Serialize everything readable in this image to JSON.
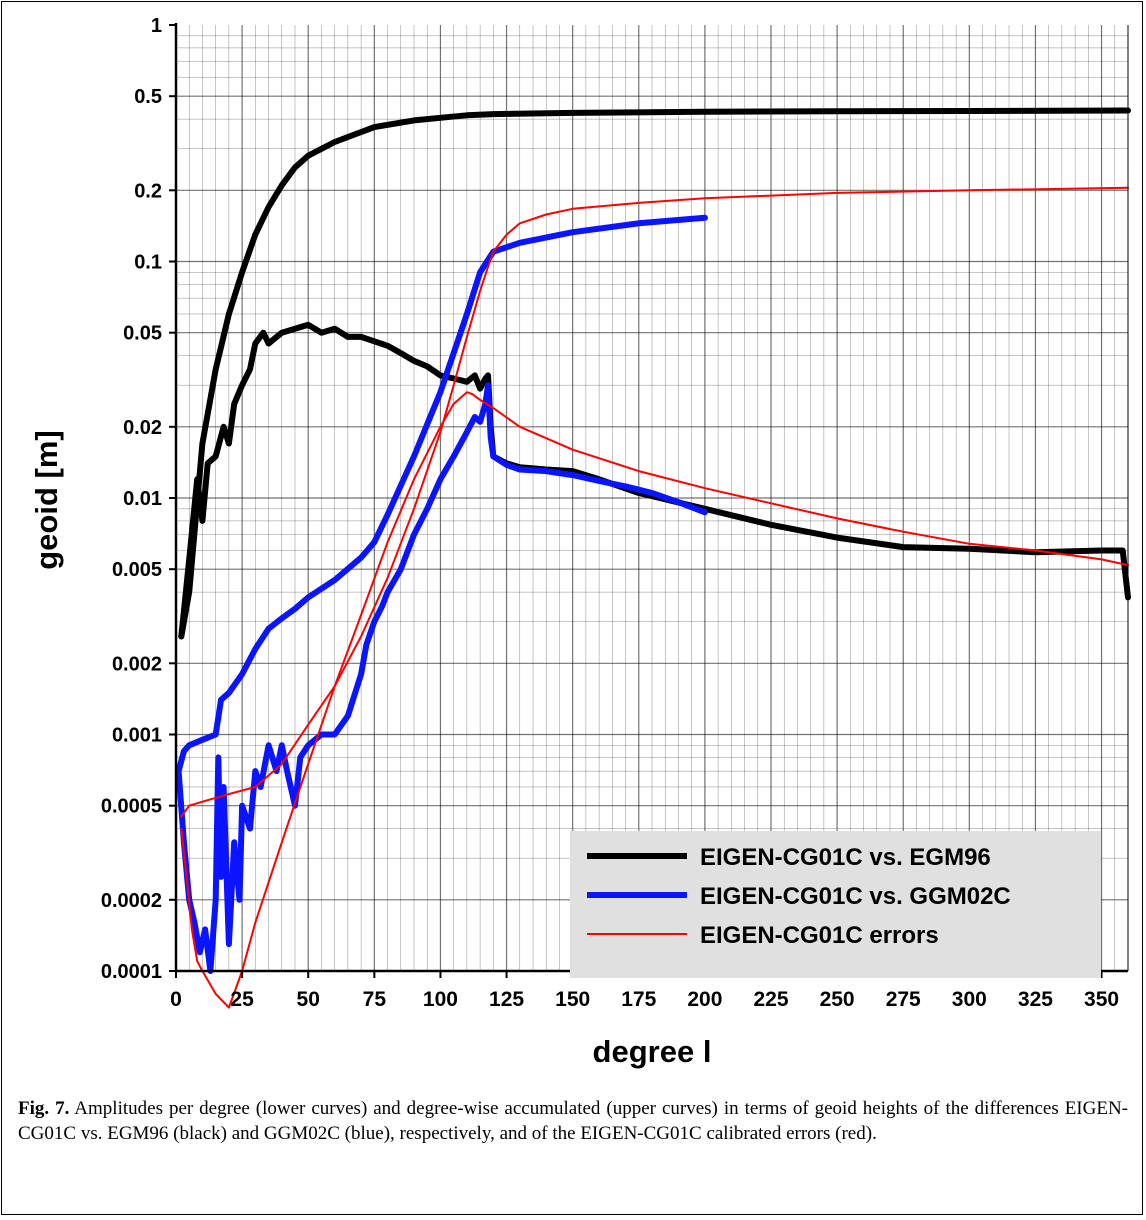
{
  "chart_data": {
    "type": "line",
    "xlabel": "degree l",
    "ylabel": "geoid [m]",
    "yscale": "log",
    "xlim": [
      0,
      360
    ],
    "ylim": [
      0.0001,
      1
    ],
    "grid": true,
    "x_ticks": [
      0,
      25,
      50,
      75,
      100,
      125,
      150,
      175,
      200,
      225,
      250,
      275,
      300,
      325,
      350
    ],
    "y_ticks": [
      0.0001,
      0.0002,
      0.0005,
      0.001,
      0.002,
      0.005,
      0.01,
      0.02,
      0.05,
      0.1,
      0.2,
      0.5,
      1
    ],
    "y_tick_labels": [
      "0.0001",
      "0.0002",
      "0.0005",
      "0.001",
      "0.002",
      "0.005",
      "0.01",
      "0.02",
      "0.05",
      "0.1",
      "0.2",
      "0.5",
      "1"
    ],
    "legend_position": "bottom-right",
    "series": [
      {
        "name": "EIGEN-CG01C vs. EGM96",
        "color": "#000000",
        "kind": "accumulated",
        "x": [
          2,
          5,
          10,
          15,
          20,
          25,
          30,
          35,
          40,
          45,
          50,
          60,
          75,
          90,
          100,
          110,
          120,
          150,
          200,
          250,
          300,
          360
        ],
        "y": [
          0.0026,
          0.004,
          0.017,
          0.035,
          0.06,
          0.09,
          0.13,
          0.17,
          0.21,
          0.25,
          0.28,
          0.32,
          0.37,
          0.395,
          0.405,
          0.415,
          0.42,
          0.425,
          0.43,
          0.432,
          0.433,
          0.435
        ]
      },
      {
        "name": "EIGEN-CG01C vs. EGM96",
        "color": "#000000",
        "kind": "per-degree",
        "x": [
          2,
          5,
          8,
          10,
          12,
          15,
          18,
          20,
          22,
          25,
          28,
          30,
          33,
          35,
          40,
          45,
          50,
          55,
          60,
          65,
          70,
          75,
          80,
          85,
          90,
          95,
          100,
          105,
          110,
          113,
          115,
          117,
          118,
          119,
          120,
          125,
          130,
          140,
          150,
          160,
          175,
          200,
          225,
          250,
          275,
          300,
          325,
          350,
          358,
          360
        ],
        "y": [
          0.0026,
          0.0055,
          0.012,
          0.008,
          0.014,
          0.015,
          0.02,
          0.017,
          0.025,
          0.03,
          0.035,
          0.045,
          0.05,
          0.045,
          0.05,
          0.052,
          0.054,
          0.05,
          0.052,
          0.048,
          0.048,
          0.046,
          0.044,
          0.041,
          0.038,
          0.036,
          0.033,
          0.032,
          0.031,
          0.033,
          0.029,
          0.032,
          0.033,
          0.02,
          0.015,
          0.014,
          0.0135,
          0.0132,
          0.013,
          0.012,
          0.0105,
          0.009,
          0.0077,
          0.0068,
          0.0062,
          0.0061,
          0.0059,
          0.006,
          0.006,
          0.0038
        ]
      },
      {
        "name": "EIGEN-CG01C vs. GGM02C",
        "color": "#0a14ff",
        "kind": "accumulated",
        "x": [
          1,
          3,
          5,
          10,
          15,
          17,
          20,
          25,
          30,
          35,
          40,
          45,
          50,
          60,
          70,
          75,
          80,
          90,
          100,
          110,
          115,
          120,
          130,
          150,
          175,
          200
        ],
        "y": [
          0.0007,
          0.00085,
          0.0009,
          0.00095,
          0.001,
          0.0014,
          0.0015,
          0.0018,
          0.0023,
          0.0028,
          0.0031,
          0.0034,
          0.0038,
          0.0045,
          0.0056,
          0.0065,
          0.0085,
          0.015,
          0.028,
          0.06,
          0.09,
          0.11,
          0.12,
          0.133,
          0.145,
          0.153
        ]
      },
      {
        "name": "EIGEN-CG01C vs. GGM02C",
        "color": "#0a14ff",
        "kind": "per-degree",
        "x": [
          1,
          3,
          5,
          7,
          9,
          11,
          13,
          15,
          16,
          17,
          18,
          20,
          22,
          24,
          25,
          28,
          30,
          32,
          35,
          38,
          40,
          42,
          45,
          47,
          50,
          55,
          60,
          65,
          70,
          72,
          75,
          78,
          80,
          85,
          90,
          95,
          100,
          105,
          110,
          113,
          115,
          117,
          118,
          119,
          120,
          125,
          130,
          140,
          150,
          160,
          170,
          180,
          190,
          200
        ],
        "y": [
          0.0007,
          0.00035,
          0.0002,
          0.00016,
          0.00012,
          0.00015,
          0.0001,
          0.0002,
          0.0008,
          0.00025,
          0.0006,
          0.00013,
          0.00035,
          0.0002,
          0.0005,
          0.0004,
          0.0007,
          0.0006,
          0.0009,
          0.0007,
          0.0009,
          0.0007,
          0.0005,
          0.0008,
          0.0009,
          0.001,
          0.001,
          0.0012,
          0.0018,
          0.0024,
          0.003,
          0.0035,
          0.004,
          0.005,
          0.007,
          0.009,
          0.012,
          0.015,
          0.019,
          0.022,
          0.021,
          0.025,
          0.03,
          0.018,
          0.015,
          0.0138,
          0.0132,
          0.013,
          0.0125,
          0.0118,
          0.0112,
          0.0105,
          0.0096,
          0.0087
        ]
      },
      {
        "name": "EIGEN-CG01C errors",
        "color": "#ff0000",
        "kind": "accumulated",
        "x": [
          2,
          5,
          10,
          20,
          30,
          40,
          50,
          60,
          70,
          80,
          90,
          100,
          105,
          110,
          115,
          118,
          120,
          125,
          130,
          140,
          150,
          175,
          200,
          250,
          300,
          360
        ],
        "y": [
          0.00045,
          0.0005,
          0.00052,
          0.00056,
          0.0006,
          0.00075,
          0.0011,
          0.0016,
          0.0026,
          0.0046,
          0.009,
          0.019,
          0.03,
          0.048,
          0.075,
          0.095,
          0.11,
          0.13,
          0.145,
          0.158,
          0.167,
          0.177,
          0.185,
          0.195,
          0.2,
          0.205
        ]
      },
      {
        "name": "EIGEN-CG01C errors",
        "color": "#ff0000",
        "kind": "per-degree",
        "x": [
          2,
          4,
          6,
          8,
          10,
          15,
          20,
          25,
          30,
          40,
          50,
          60,
          70,
          80,
          90,
          100,
          105,
          110,
          112,
          115,
          120,
          130,
          150,
          175,
          200,
          225,
          250,
          275,
          300,
          325,
          350,
          360
        ],
        "y": [
          0.0004,
          0.00025,
          0.00015,
          0.00011,
          0.0001,
          8e-05,
          7e-05,
          0.0001,
          0.00016,
          0.00035,
          0.00075,
          0.0016,
          0.0032,
          0.0065,
          0.012,
          0.02,
          0.025,
          0.028,
          0.0275,
          0.026,
          0.024,
          0.02,
          0.016,
          0.013,
          0.011,
          0.0095,
          0.0082,
          0.0072,
          0.0064,
          0.006,
          0.0055,
          0.0052
        ]
      }
    ]
  },
  "legend": {
    "items": [
      {
        "label": "EIGEN-CG01C vs. EGM96",
        "color": "#000000",
        "width": 6
      },
      {
        "label": "EIGEN-CG01C vs. GGM02C",
        "color": "#0a14ff",
        "width": 6
      },
      {
        "label": "EIGEN-CG01C errors",
        "color": "#ff0000",
        "width": 2
      }
    ]
  },
  "caption": {
    "label": "Fig. 7.",
    "text": " Amplitudes per degree (lower curves) and degree-wise accumulated (upper curves) in terms of geoid heights of the differences EIGEN-CG01C vs. EGM96 (black) and GGM02C (blue), respectively, and of the EIGEN-CG01C calibrated errors (red)."
  }
}
